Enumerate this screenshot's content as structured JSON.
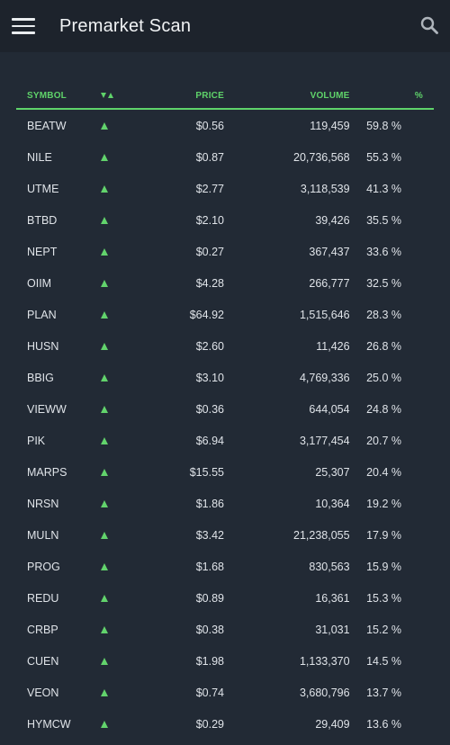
{
  "header": {
    "title": "Premarket Scan"
  },
  "table": {
    "columns": {
      "symbol": "SYMBOL",
      "price": "PRICE",
      "volume": "VOLUME",
      "percent": "%"
    },
    "rows": [
      {
        "symbol": "BEATW",
        "price": "$0.56",
        "volume": "119,459",
        "percent": "59.8 %"
      },
      {
        "symbol": "NILE",
        "price": "$0.87",
        "volume": "20,736,568",
        "percent": "55.3 %"
      },
      {
        "symbol": "UTME",
        "price": "$2.77",
        "volume": "3,118,539",
        "percent": "41.3 %"
      },
      {
        "symbol": "BTBD",
        "price": "$2.10",
        "volume": "39,426",
        "percent": "35.5 %"
      },
      {
        "symbol": "NEPT",
        "price": "$0.27",
        "volume": "367,437",
        "percent": "33.6 %"
      },
      {
        "symbol": "OIIM",
        "price": "$4.28",
        "volume": "266,777",
        "percent": "32.5 %"
      },
      {
        "symbol": "PLAN",
        "price": "$64.92",
        "volume": "1,515,646",
        "percent": "28.3 %"
      },
      {
        "symbol": "HUSN",
        "price": "$2.60",
        "volume": "11,426",
        "percent": "26.8 %"
      },
      {
        "symbol": "BBIG",
        "price": "$3.10",
        "volume": "4,769,336",
        "percent": "25.0 %"
      },
      {
        "symbol": "VIEWW",
        "price": "$0.36",
        "volume": "644,054",
        "percent": "24.8 %"
      },
      {
        "symbol": "PIK",
        "price": "$6.94",
        "volume": "3,177,454",
        "percent": "20.7 %"
      },
      {
        "symbol": "MARPS",
        "price": "$15.55",
        "volume": "25,307",
        "percent": "20.4 %"
      },
      {
        "symbol": "NRSN",
        "price": "$1.86",
        "volume": "10,364",
        "percent": "19.2 %"
      },
      {
        "symbol": "MULN",
        "price": "$3.42",
        "volume": "21,238,055",
        "percent": "17.9 %"
      },
      {
        "symbol": "PROG",
        "price": "$1.68",
        "volume": "830,563",
        "percent": "15.9 %"
      },
      {
        "symbol": "REDU",
        "price": "$0.89",
        "volume": "16,361",
        "percent": "15.3 %"
      },
      {
        "symbol": "CRBP",
        "price": "$0.38",
        "volume": "31,031",
        "percent": "15.2 %"
      },
      {
        "symbol": "CUEN",
        "price": "$1.98",
        "volume": "1,133,370",
        "percent": "14.5 %"
      },
      {
        "symbol": "VEON",
        "price": "$0.74",
        "volume": "3,680,796",
        "percent": "13.7 %"
      },
      {
        "symbol": "HYMCW",
        "price": "$0.29",
        "volume": "29,409",
        "percent": "13.6 %"
      }
    ]
  },
  "icons": {
    "menu": "hamburger-menu-icon",
    "search": "search-icon",
    "sort": "sort-icon",
    "direction": "up-triangle-icon"
  },
  "colors": {
    "accent": "#5fd36a",
    "background": "#222a35",
    "appbar": "#1d232c"
  }
}
